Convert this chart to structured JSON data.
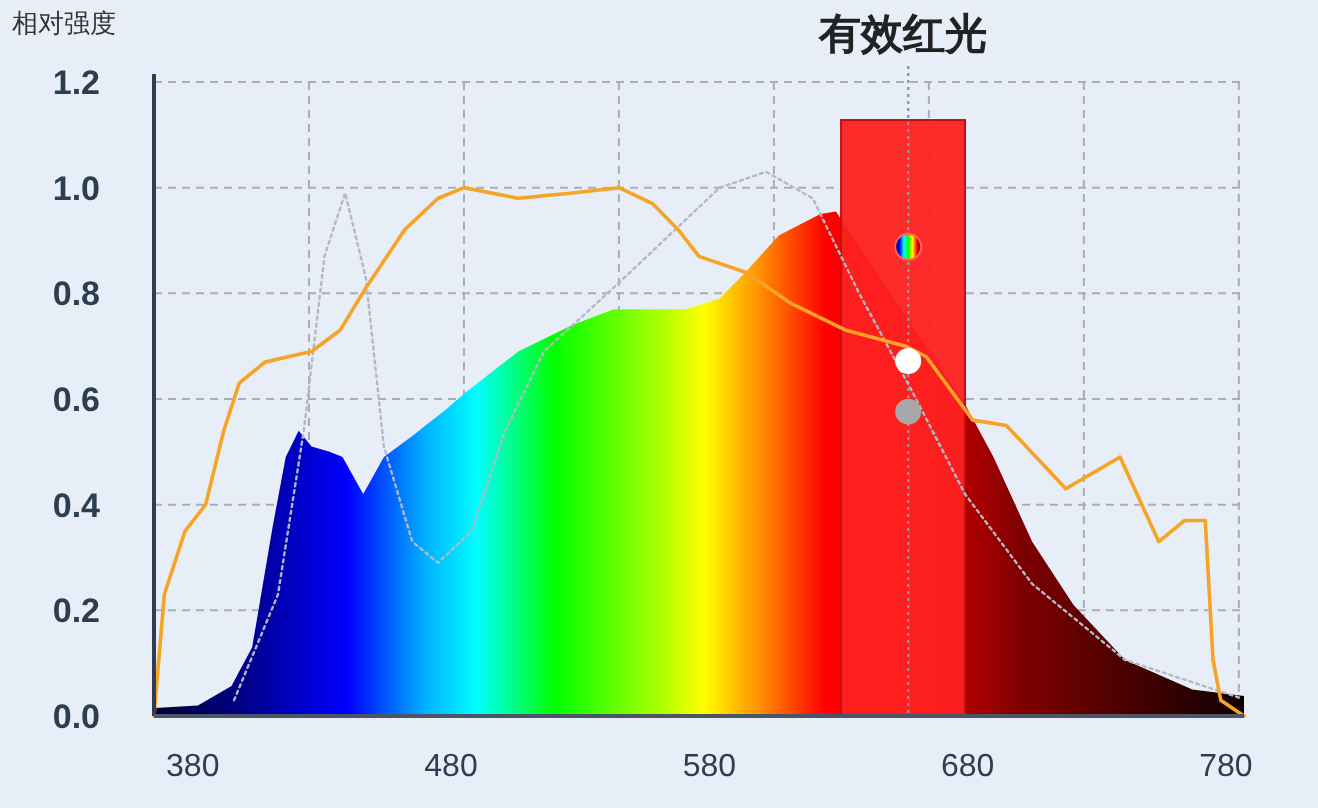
{
  "chart_data": {
    "type": "area",
    "ylabel": "相对强度",
    "xlim": [
      365,
      787
    ],
    "ylim": [
      0,
      1.2
    ],
    "xticks": [
      380,
      480,
      580,
      680,
      780,
      {
        "value": 425,
        "label": null
      },
      {
        "value": 485,
        "label": null
      },
      {
        "value": 545,
        "label": null
      },
      {
        "value": 605,
        "label": null
      },
      {
        "value": 665,
        "label": null
      },
      {
        "value": 725,
        "label": null
      },
      {
        "value": 785,
        "label": null
      }
    ],
    "yticks": [
      {
        "value": 0,
        "label": "0.0"
      },
      0.2,
      0.4,
      0.6,
      0.8,
      {
        "value": 1,
        "label": "1.0"
      },
      1.2
    ],
    "grid": true,
    "line_style": "dashed",
    "bands": [
      {
        "axis": "x",
        "from": 631,
        "to": 679,
        "label": "有效红光",
        "color": "#ff2020"
      }
    ],
    "ref_lines": [
      {
        "axis": "x",
        "value": 657,
        "label": null,
        "color": "#9098a8",
        "line_style": "dotted"
      }
    ],
    "series": [
      {
        "x": [
          365.5,
          382,
          395,
          403,
          411,
          416,
          421,
          426,
          433,
          438,
          446,
          454,
          465,
          478,
          485,
          506,
          527,
          543,
          558,
          571,
          584,
          594,
          607,
          623,
          629,
          679,
          690,
          705,
          721,
          741,
          767,
          787
        ],
        "values": [
          0.015,
          0.02,
          0.057,
          0.13,
          0.36,
          0.49,
          0.54,
          0.51,
          0.5,
          0.49,
          0.42,
          0.49,
          0.53,
          0.58,
          0.61,
          0.69,
          0.74,
          0.77,
          0.77,
          0.77,
          0.79,
          0.84,
          0.91,
          0.95,
          0.955,
          0.59,
          0.49,
          0.33,
          0.21,
          0.106,
          0.05,
          0.038
        ]
      },
      {
        "type": "line",
        "color": "#b4b8c4",
        "line_style": "dotted",
        "x": [
          396,
          413,
          423,
          431,
          439,
          447,
          454,
          465,
          475,
          488,
          501,
          516,
          545,
          584,
          602,
          620,
          638,
          659,
          679,
          705,
          741,
          785
        ],
        "values": [
          0.03,
          0.23,
          0.54,
          0.87,
          0.99,
          0.83,
          0.51,
          0.33,
          0.29,
          0.35,
          0.54,
          0.69,
          0.82,
          1.0,
          1.03,
          0.98,
          0.8,
          0.61,
          0.42,
          0.25,
          0.106,
          0.035
        ]
      },
      {
        "type": "line",
        "color": "#f7a325",
        "line_style": "solid",
        "x": [
          365,
          369,
          377,
          385,
          392,
          398,
          408,
          426,
          437,
          447,
          462,
          475,
          485,
          506,
          527,
          545,
          558,
          568,
          576,
          594,
          612,
          633,
          656,
          664,
          682,
          695,
          718,
          739,
          754,
          764,
          772,
          775,
          778,
          787
        ],
        "values": [
          0,
          0.23,
          0.35,
          0.4,
          0.54,
          0.63,
          0.67,
          0.69,
          0.73,
          0.81,
          0.92,
          0.98,
          1.0,
          0.98,
          0.99,
          1.0,
          0.97,
          0.92,
          0.87,
          0.84,
          0.78,
          0.73,
          0.7,
          0.68,
          0.56,
          0.55,
          0.43,
          0.49,
          0.33,
          0.37,
          0.37,
          0.106,
          0.03,
          0
        ]
      }
    ]
  }
}
